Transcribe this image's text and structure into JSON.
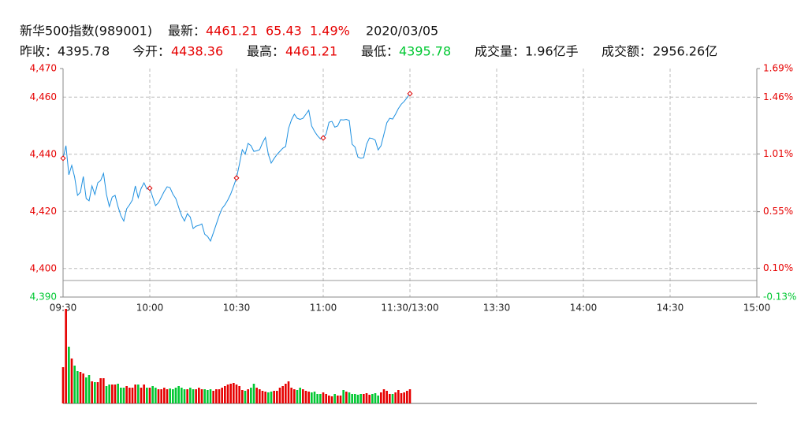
{
  "header": {
    "name": "新华500指数(989001)",
    "latest_label": "最新：",
    "latest": "4461.21",
    "change": "65.43",
    "change_pct": "1.49%",
    "date": "2020/03/05",
    "prev_close_label": "昨收：",
    "prev_close": "4395.78",
    "open_label": "今开：",
    "open": "4438.36",
    "high_label": "最高：",
    "high": "4461.21",
    "low_label": "最低：",
    "low": "4395.78",
    "volume_label": "成交量：",
    "volume": "1.96亿手",
    "amount_label": "成交额：",
    "amount": "2956.26亿"
  },
  "chart_data": {
    "type": "line",
    "color": "#1e90e0",
    "up_color": "#e60000",
    "down_color": "#00c832",
    "ref_line": 4395.78,
    "grid": true,
    "xlim": [
      0,
      240
    ],
    "xticks": [
      {
        "value": 0,
        "label": "09:30"
      },
      {
        "value": 30,
        "label": "10:00"
      },
      {
        "value": 60,
        "label": "10:30"
      },
      {
        "value": 90,
        "label": "11:00"
      },
      {
        "value": 120,
        "label": "11:30/13:00"
      },
      {
        "value": 150,
        "label": "13:30"
      },
      {
        "value": 180,
        "label": "14:00"
      },
      {
        "value": 210,
        "label": "14:30"
      },
      {
        "value": 240,
        "label": "15:00"
      }
    ],
    "ylim": [
      4390,
      4470
    ],
    "yticks": [
      {
        "value": 4390,
        "label": "4,390"
      },
      {
        "value": 4400,
        "label": "4,400"
      },
      {
        "value": 4420,
        "label": "4,420"
      },
      {
        "value": 4440,
        "label": "4,440"
      },
      {
        "value": 4460,
        "label": "4,460"
      },
      {
        "value": 4470,
        "label": "4,470"
      }
    ],
    "y2lim": [
      -0.13,
      1.69
    ],
    "y2ticks": [
      {
        "value": -0.13,
        "label": "-0.13%"
      },
      {
        "value": 0.1,
        "label": "0.10%"
      },
      {
        "value": 0.55,
        "label": "0.55%"
      },
      {
        "value": 1.01,
        "label": "1.01%"
      },
      {
        "value": 1.46,
        "label": "1.46%"
      },
      {
        "value": 1.69,
        "label": "1.69%"
      }
    ],
    "values": [
      4438.6,
      4443.0,
      4432.8,
      4436.1,
      4432.0,
      4425.6,
      4426.7,
      4432.2,
      4424.5,
      4423.7,
      4428.9,
      4425.9,
      4430.0,
      4430.8,
      4433.3,
      4426.0,
      4421.7,
      4425.0,
      4425.6,
      4421.7,
      4418.5,
      4416.6,
      4420.9,
      4422.3,
      4424.0,
      4428.9,
      4424.8,
      4428.0,
      4430.0,
      4427.8,
      4428.1,
      4425.0,
      4422.0,
      4423.0,
      4425.0,
      4427.0,
      4428.6,
      4428.3,
      4426.0,
      4424.5,
      4421.4,
      4418.5,
      4416.6,
      4419.2,
      4418.0,
      4414.0,
      4414.8,
      4415.1,
      4415.6,
      4412.0,
      4411.2,
      4409.6,
      4412.5,
      4415.5,
      4418.5,
      4421.0,
      4422.3,
      4424.0,
      4426.1,
      4428.8,
      4431.7,
      4436.5,
      4441.6,
      4440.0,
      4443.8,
      4443.0,
      4441.0,
      4441.2,
      4441.6,
      4444.0,
      4445.9,
      4440.0,
      4436.9,
      4438.5,
      4439.9,
      4441.0,
      4442.1,
      4442.7,
      4449.0,
      4452.0,
      4454.0,
      4452.6,
      4452.2,
      4452.6,
      4454.0,
      4455.4,
      4449.9,
      4448.0,
      4446.5,
      4445.4,
      4445.7,
      4447.1,
      4451.2,
      4451.5,
      4449.5,
      4449.9,
      4452.1,
      4452.0,
      4452.2,
      4451.8,
      4443.5,
      4442.5,
      4439.0,
      4438.6,
      4438.8,
      4443.5,
      4445.7,
      4445.5,
      4444.9,
      4441.5,
      4443.0,
      4447.0,
      4451.0,
      4452.6,
      4452.3,
      4454.0,
      4456.0,
      4457.5,
      4458.5,
      4459.8,
      4461.21
    ],
    "volume": {
      "ylim": [
        0,
        120
      ],
      "values": [
        46,
        120,
        72,
        57,
        48,
        41,
        40,
        38,
        33,
        36,
        28,
        27,
        27,
        32,
        32,
        22,
        24,
        24,
        24,
        25,
        20,
        20,
        22,
        20,
        20,
        24,
        24,
        20,
        24,
        20,
        20,
        22,
        20,
        18,
        18,
        20,
        18,
        19,
        18,
        20,
        22,
        20,
        18,
        18,
        20,
        18,
        18,
        20,
        18,
        18,
        17,
        18,
        16,
        18,
        18,
        20,
        22,
        24,
        25,
        26,
        24,
        22,
        17,
        16,
        18,
        20,
        25,
        20,
        18,
        16,
        15,
        14,
        15,
        16,
        16,
        20,
        22,
        25,
        28,
        20,
        18,
        17,
        20,
        18,
        16,
        15,
        14,
        15,
        12,
        12,
        14,
        12,
        10,
        9,
        12,
        10,
        10,
        17,
        15,
        14,
        12,
        12,
        11,
        12,
        12,
        13,
        11,
        12,
        13,
        10,
        14,
        18,
        16,
        12,
        12,
        14,
        17,
        13,
        14,
        16,
        18
      ]
    }
  }
}
